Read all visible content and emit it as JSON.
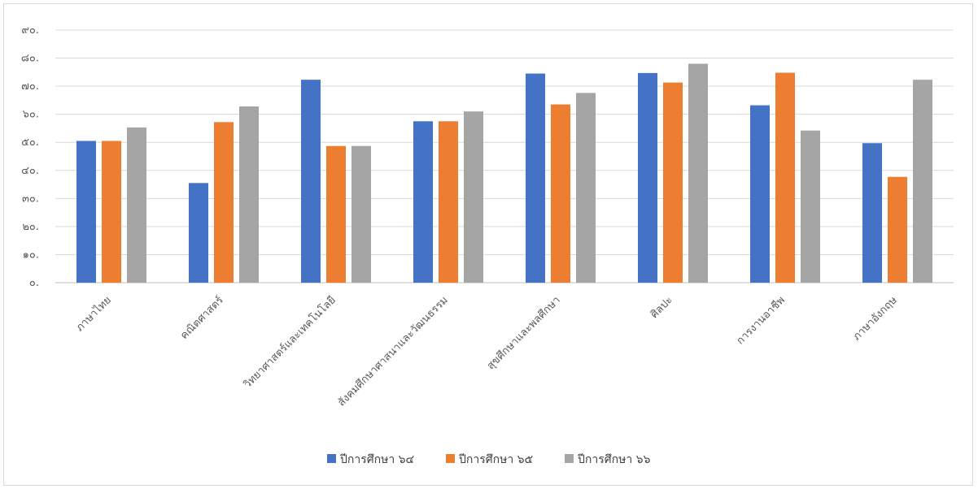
{
  "chart_data": {
    "type": "bar",
    "title": "",
    "xlabel": "",
    "ylabel": "",
    "ylim": [
      0,
      90
    ],
    "yticks": [
      0,
      10,
      20,
      30,
      40,
      50,
      60,
      70,
      80,
      90
    ],
    "ytick_labels": [
      "๐.",
      "๑๐.",
      "๒๐.",
      "๓๐.",
      "๔๐.",
      "๕๐.",
      "๖๐.",
      "๗๐.",
      "๘๐.",
      "๙๐."
    ],
    "grid": true,
    "legend_position": "bottom",
    "categories": [
      "ภาษาไทย",
      "คณิตศาสตร์",
      "วิทยาศาสตร์และเทคโนโลยี",
      "สังคมศึกษาศาสนาและวัฒนธรรม",
      "สุขศึกษาและพลศึกษา",
      "ศิลปะ",
      "การงานอาชีพ",
      "ภาษาอังกฤษ"
    ],
    "series": [
      {
        "name": "ปีการศึกษา ๖๔",
        "color": "#4472C4",
        "values": [
          50.5,
          35.5,
          72.3,
          57.5,
          74.5,
          74.7,
          63.2,
          49.7
        ]
      },
      {
        "name": "ปีการศึกษา ๖๕",
        "color": "#ED7D31",
        "values": [
          50.5,
          57.2,
          48.7,
          57.5,
          63.5,
          71.3,
          74.8,
          37.7
        ]
      },
      {
        "name": "ปีการศึกษา ๖๖",
        "color": "#A5A5A5",
        "values": [
          55.3,
          62.8,
          48.7,
          61.0,
          67.6,
          78.0,
          54.2,
          72.3
        ]
      }
    ]
  }
}
